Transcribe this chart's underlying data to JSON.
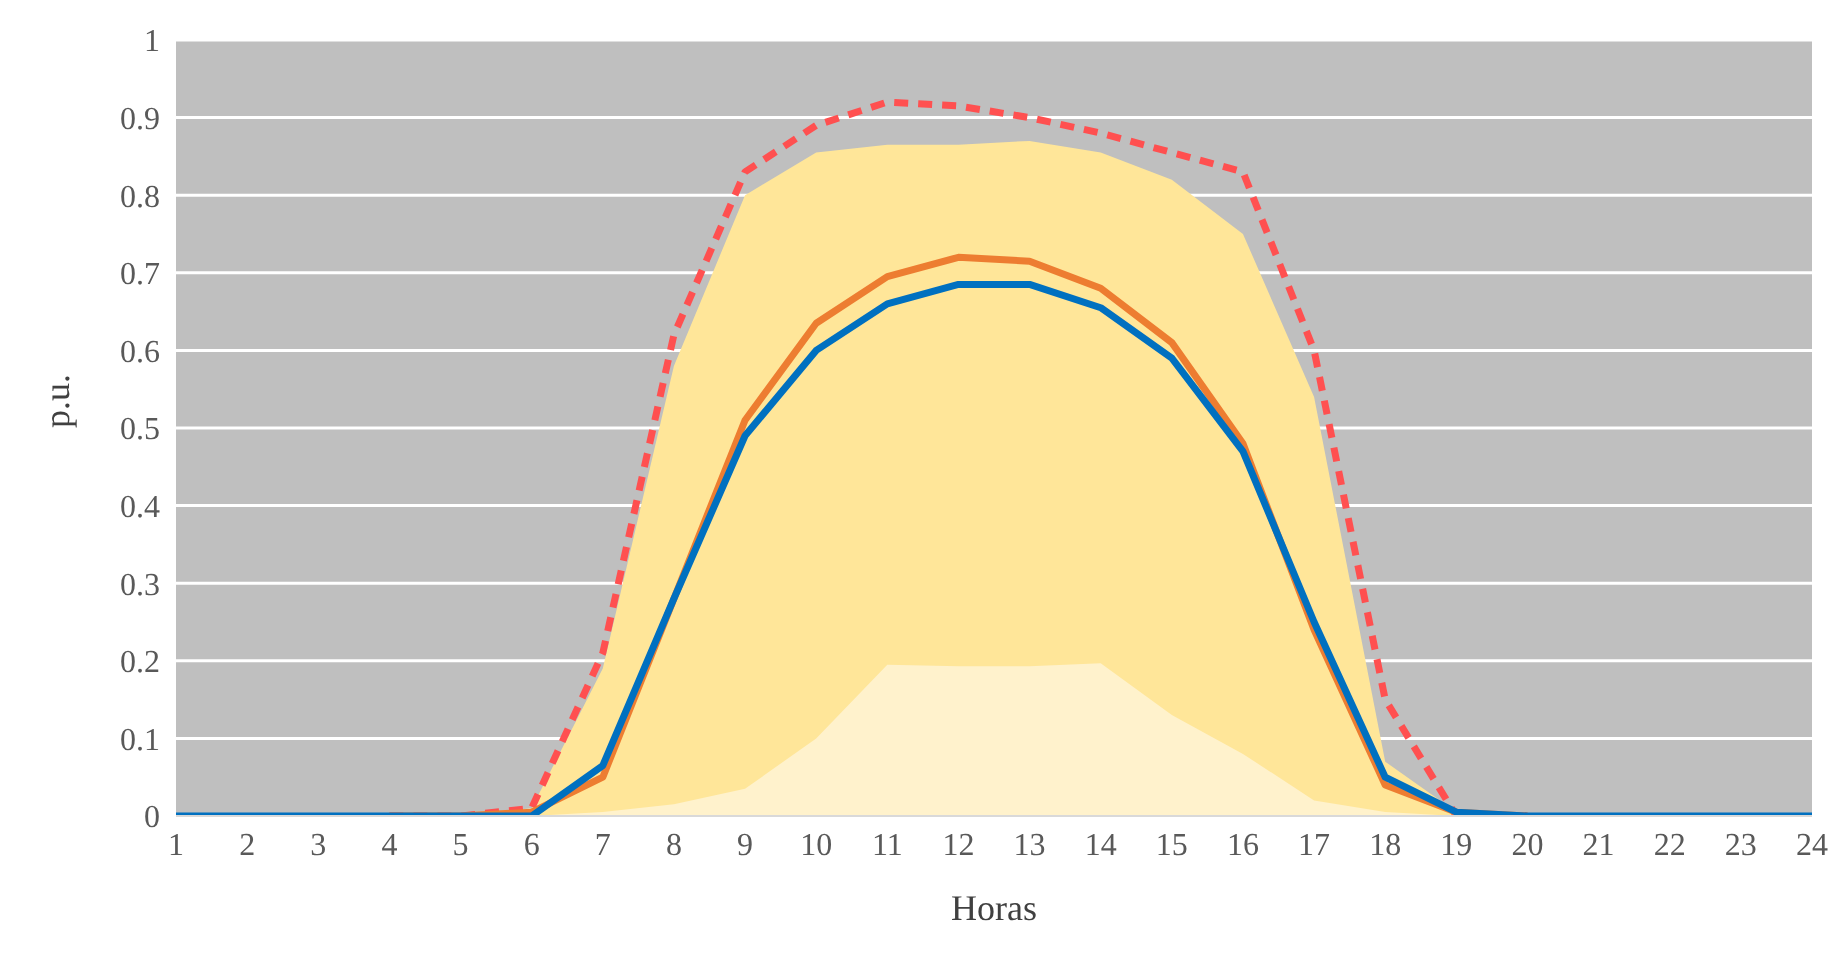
{
  "chart_data": {
    "type": "line",
    "xlabel": "Horas",
    "ylabel": "p.u.",
    "x": [
      1,
      2,
      3,
      4,
      5,
      6,
      7,
      8,
      9,
      10,
      11,
      12,
      13,
      14,
      15,
      16,
      17,
      18,
      19,
      20,
      21,
      22,
      23,
      24
    ],
    "xlim": [
      1,
      24
    ],
    "xticks": [
      1,
      2,
      3,
      4,
      5,
      6,
      7,
      8,
      9,
      10,
      11,
      12,
      13,
      14,
      15,
      16,
      17,
      18,
      19,
      20,
      21,
      22,
      23,
      24
    ],
    "ylim": [
      0,
      1
    ],
    "yticks": [
      0,
      0.1,
      0.2,
      0.3,
      0.4,
      0.5,
      0.6,
      0.7,
      0.8,
      0.9,
      1
    ],
    "grid": "y",
    "series": [
      {
        "type": "area",
        "color": "#ffe699",
        "values": [
          0,
          0,
          0,
          0,
          0,
          0.01,
          0.19,
          0.58,
          0.8,
          0.855,
          0.865,
          0.865,
          0.87,
          0.855,
          0.82,
          0.75,
          0.54,
          0.07,
          0.005,
          0,
          0,
          0,
          0,
          0
        ]
      },
      {
        "type": "area",
        "color": "#fff2cc",
        "values": [
          0,
          0,
          0,
          0,
          0,
          0,
          0.005,
          0.015,
          0.035,
          0.1,
          0.195,
          0.193,
          0.193,
          0.197,
          0.13,
          0.08,
          0.02,
          0.005,
          0,
          0,
          0,
          0,
          0,
          0
        ]
      },
      {
        "color": "#ff5050",
        "line_style": "dashed",
        "values": [
          null,
          null,
          null,
          0,
          0,
          0.01,
          0.21,
          0.62,
          0.83,
          0.89,
          0.92,
          0.915,
          0.9,
          0.88,
          0.855,
          0.83,
          0.6,
          0.15,
          0,
          0,
          null,
          null,
          null,
          null
        ]
      },
      {
        "color": "#ed7d31",
        "line_style": "solid",
        "values": [
          null,
          null,
          null,
          0,
          0,
          0.005,
          0.05,
          0.28,
          0.51,
          0.635,
          0.695,
          0.72,
          0.715,
          0.68,
          0.61,
          0.48,
          0.24,
          0.04,
          0.005,
          0,
          null,
          null,
          null,
          null
        ]
      },
      {
        "color": "#0070c0",
        "line_style": "solid",
        "values": [
          0,
          0,
          0,
          0,
          0,
          0,
          0.065,
          0.28,
          0.49,
          0.6,
          0.66,
          0.685,
          0.685,
          0.655,
          0.59,
          0.47,
          0.25,
          0.05,
          0.005,
          0,
          0,
          0,
          0,
          0
        ]
      }
    ]
  }
}
